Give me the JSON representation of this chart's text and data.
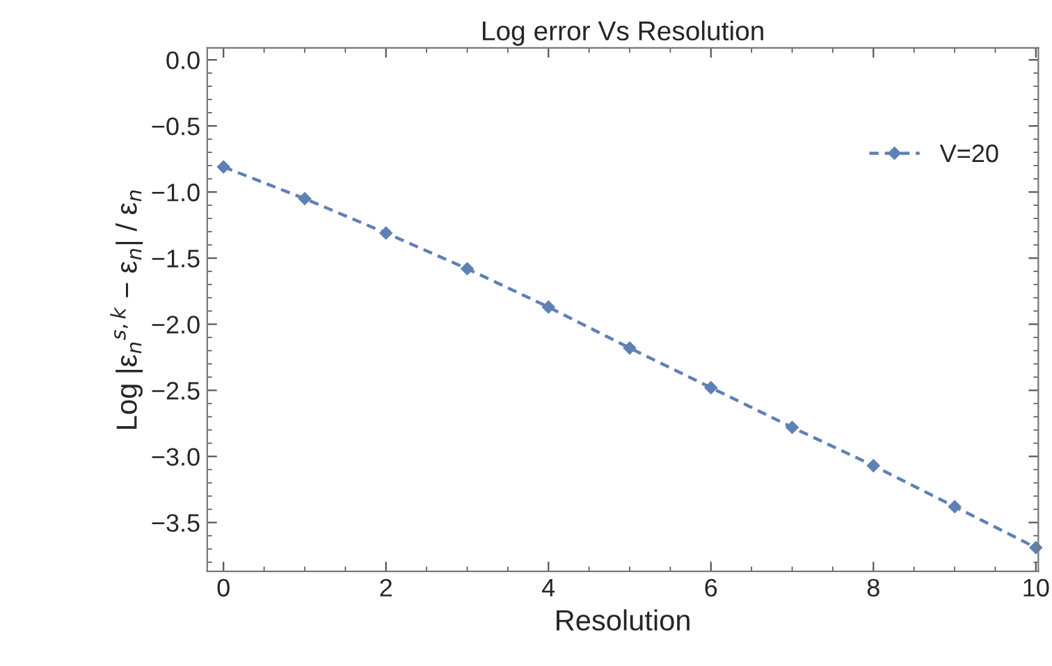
{
  "chart_data": {
    "type": "line",
    "title": "Log error Vs Resolution",
    "xlabel": "Resolution",
    "ylabel": "Log |ε$_{n}$$^{s,k}$ − ε$_{n}$| / ε$_{n}$",
    "x": [
      0,
      1,
      2,
      3,
      4,
      5,
      6,
      7,
      8,
      9,
      10
    ],
    "series": [
      {
        "name": "V=20",
        "color": "#5e81b5",
        "values": [
          -0.81,
          -1.05,
          -1.31,
          -1.58,
          -1.87,
          -2.18,
          -2.48,
          -2.78,
          -3.07,
          -3.38,
          -3.69
        ]
      }
    ],
    "xlim": [
      -0.2,
      10.03
    ],
    "ylim": [
      -3.87,
      0.09
    ],
    "xticks": [
      0,
      2,
      4,
      6,
      8,
      10
    ],
    "yticks": [
      {
        "value": 0,
        "label": "0.0"
      },
      {
        "value": -0.5,
        "label": "−0.5"
      },
      {
        "value": -1,
        "label": "−1.0"
      },
      {
        "value": -1.5,
        "label": "−1.5"
      },
      {
        "value": -2,
        "label": "−2.0"
      },
      {
        "value": -2.5,
        "label": "−2.5"
      },
      {
        "value": -3,
        "label": "−3.0"
      },
      {
        "value": -3.5,
        "label": "−3.5"
      }
    ],
    "marker": "diamond",
    "line_style": "dashed",
    "legend": "top right",
    "grid": false
  }
}
